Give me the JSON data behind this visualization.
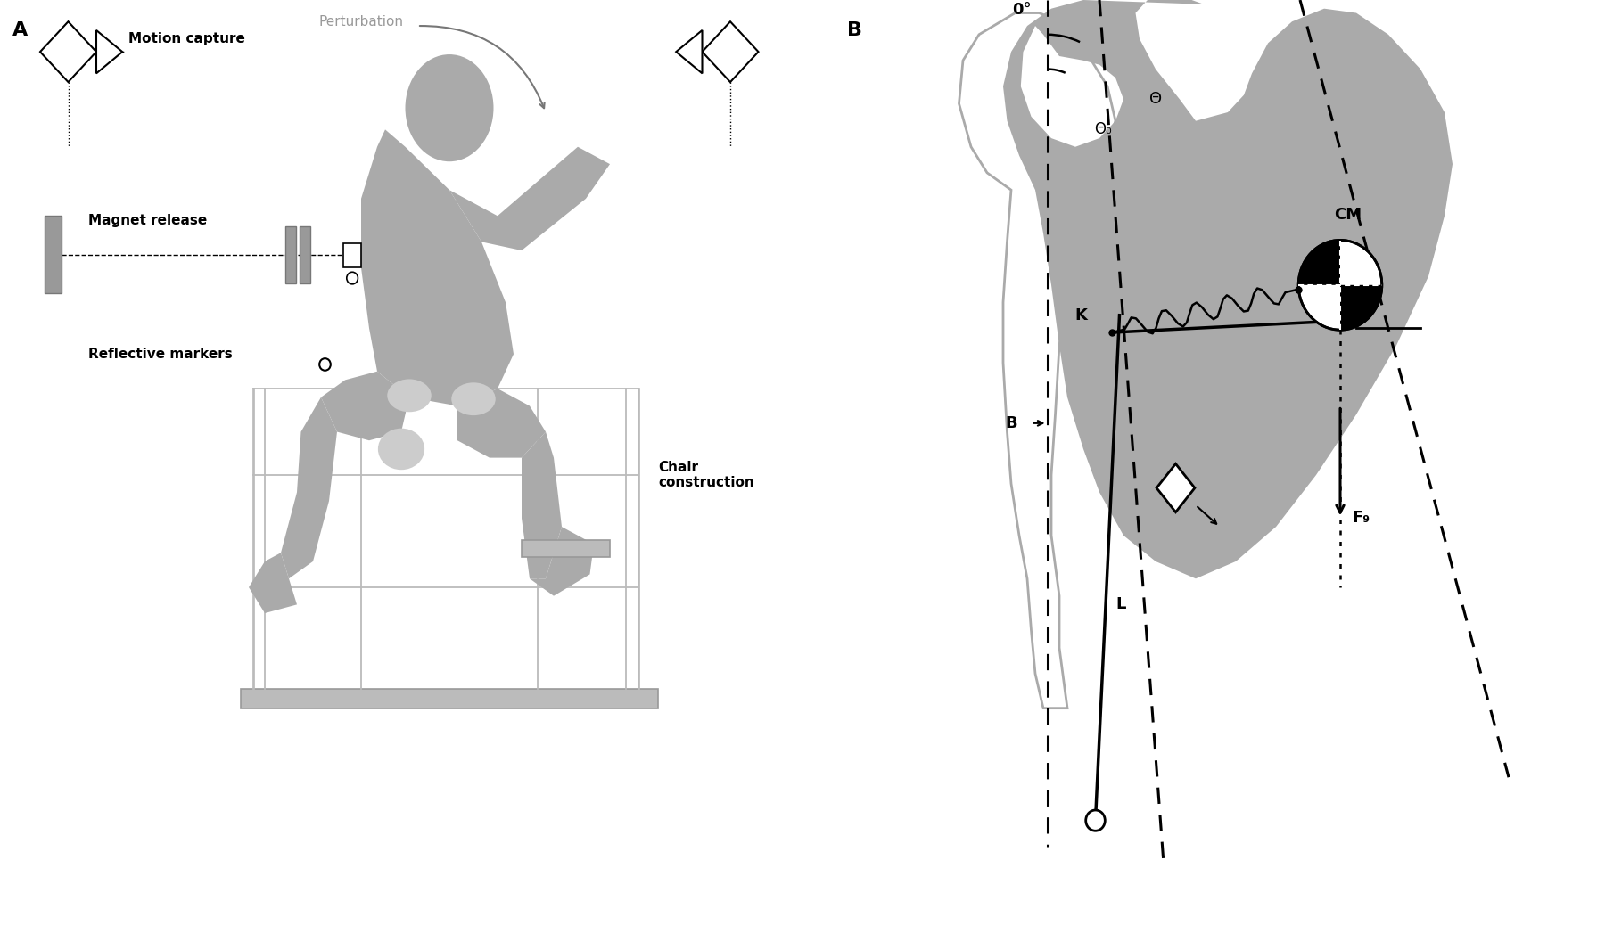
{
  "bg_color": "#ffffff",
  "gray_body": "#aaaaaa",
  "gray_light": "#cccccc",
  "gray_dark": "#888888",
  "gray_outline": "#aaaaaa",
  "label_A": "A",
  "label_B": "B",
  "text_perturbation": "Perturbation",
  "text_motion_capture": "Motion capture",
  "text_magnet": "Magnet release",
  "text_markers": "Reflective markers",
  "text_chair": "Chair\nconstruction",
  "text_0deg": "0°",
  "text_theta": "Θ",
  "text_theta0": "Θ₀",
  "text_CM": "CM",
  "text_K": "K",
  "text_B": "B",
  "text_L": "L",
  "text_Fg": "F₉"
}
